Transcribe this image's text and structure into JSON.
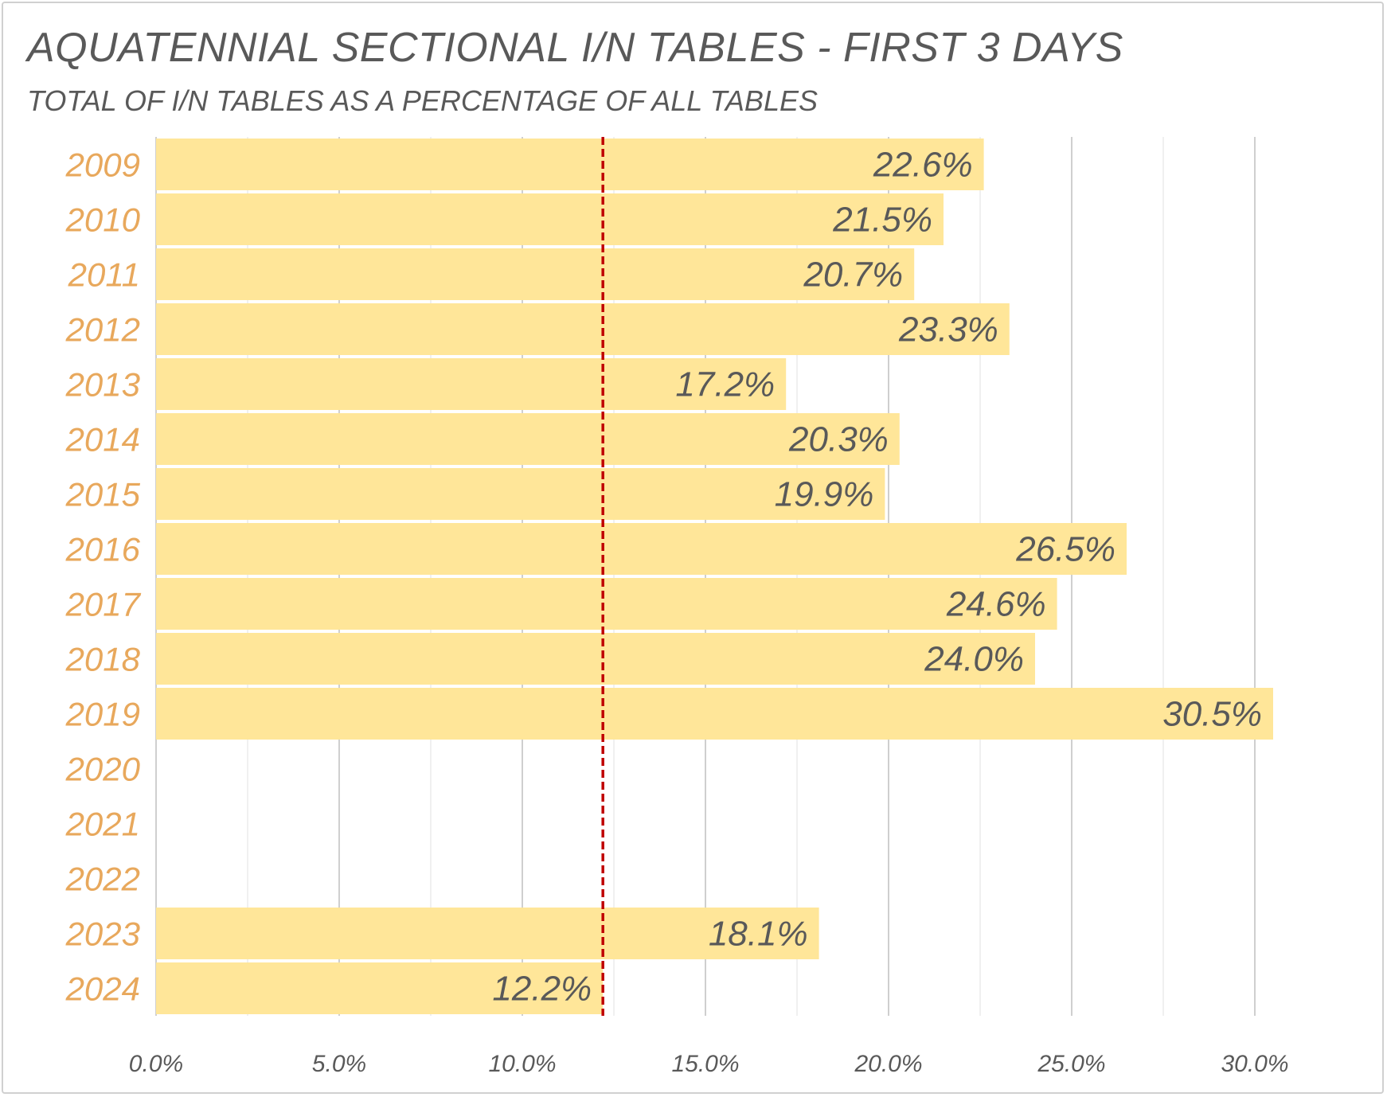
{
  "chart_data": {
    "type": "bar",
    "orientation": "horizontal",
    "title": "AQUATENNIAL SECTIONAL I/N TABLES - FIRST 3 DAYS",
    "subtitle": "TOTAL OF I/N TABLES AS A PERCENTAGE OF ALL TABLES",
    "categories": [
      "2009",
      "2010",
      "2011",
      "2012",
      "2013",
      "2014",
      "2015",
      "2016",
      "2017",
      "2018",
      "2019",
      "2020",
      "2021",
      "2022",
      "2023",
      "2024"
    ],
    "values": [
      22.6,
      21.5,
      20.7,
      23.3,
      17.2,
      20.3,
      19.9,
      26.5,
      24.6,
      24.0,
      30.5,
      null,
      null,
      null,
      18.1,
      12.2
    ],
    "value_labels": [
      "22.6%",
      "21.5%",
      "20.7%",
      "23.3%",
      "17.2%",
      "20.3%",
      "19.9%",
      "26.5%",
      "24.6%",
      "24.0%",
      "30.5%",
      "",
      "",
      "",
      "18.1%",
      "12.2%"
    ],
    "x_ticks": [
      0,
      5,
      10,
      15,
      20,
      25,
      30
    ],
    "x_tick_labels": [
      "0.0%",
      "5.0%",
      "10.0%",
      "15.0%",
      "20.0%",
      "25.0%",
      "30.0%"
    ],
    "xlim": [
      0,
      31
    ],
    "reference_line": {
      "value": 12.2,
      "style": "dashed",
      "color": "#c00000"
    },
    "grid": true,
    "colors": {
      "bar": "#ffe699",
      "category_label": "#e8a85c",
      "value_label": "#595959",
      "grid": "#d9d9d9"
    }
  }
}
